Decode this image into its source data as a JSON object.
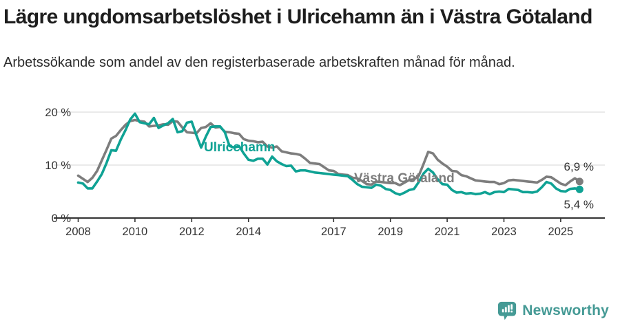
{
  "header": {
    "title": "Lägre ungdomsarbetslöshet i Ulricehamn än i Västra Götaland",
    "subtitle": "Arbetssökande som andel av den registerbaserade arbetskraften månad för månad."
  },
  "chart_data": {
    "type": "line",
    "title": "Lägre ungdomsarbetslöshet i Ulricehamn än i Västra Götaland",
    "subtitle": "Arbetssökande som andel av den registerbaserade arbetskraften månad för månad.",
    "x_start_year": 2008,
    "x_step_years": 0.166667,
    "x_tick_years": [
      2008,
      2010,
      2012,
      2014,
      2017,
      2019,
      2021,
      2023,
      2025
    ],
    "x_tick_labels": [
      "2008",
      "2010",
      "2012",
      "2014",
      "2017",
      "2019",
      "2021",
      "2023",
      "2025"
    ],
    "y_ticks": [
      {
        "value": 0,
        "label": "0 %"
      },
      {
        "value": 10,
        "label": "10 %"
      },
      {
        "value": 20,
        "label": "20 %"
      }
    ],
    "ylim": [
      0,
      21.5
    ],
    "grid": "horizontal-gridlines-at-10-and-20",
    "legend_position": "inline-labels-on-lines",
    "colors": {
      "ulricehamn": "#0fa294",
      "vastra_gotaland": "#7d7d7d",
      "grid": "#e3e3e3",
      "axis": "#333333",
      "text": "#333333"
    },
    "series": [
      {
        "name": "Västra Götaland",
        "color": "#7d7d7d",
        "end_label": "6,9 %",
        "end_value": 6.9,
        "values": [
          8.0,
          7.4,
          6.8,
          7.6,
          8.9,
          10.9,
          12.9,
          15.0,
          15.5,
          16.6,
          17.6,
          18.3,
          18.5,
          18.3,
          18.2,
          17.3,
          17.4,
          17.5,
          17.7,
          17.6,
          18.3,
          18.2,
          17.1,
          16.2,
          16.1,
          16.0,
          17.0,
          17.2,
          17.9,
          17.1,
          17.2,
          16.3,
          16.2,
          16.0,
          15.9,
          14.9,
          14.6,
          14.5,
          14.3,
          14.4,
          13.5,
          13.3,
          13.5,
          12.6,
          12.4,
          12.2,
          12.1,
          11.9,
          11.2,
          10.4,
          10.3,
          10.2,
          9.6,
          9.0,
          8.9,
          8.3,
          8.2,
          8.1,
          7.6,
          7.5,
          7.0,
          6.4,
          6.3,
          6.9,
          6.8,
          6.7,
          6.6,
          6.6,
          6.2,
          6.7,
          7.2,
          7.3,
          8.0,
          10.2,
          12.5,
          12.2,
          11.0,
          10.3,
          9.7,
          8.9,
          8.8,
          8.1,
          7.9,
          7.5,
          7.1,
          7.0,
          6.9,
          6.8,
          6.8,
          6.4,
          6.6,
          7.1,
          7.2,
          7.1,
          7.0,
          6.9,
          6.8,
          6.7,
          7.2,
          7.8,
          7.7,
          7.1,
          6.5,
          6.2,
          6.9,
          7.5,
          6.9
        ]
      },
      {
        "name": "Ulricehamn",
        "color": "#0fa294",
        "end_label": "5,4 %",
        "end_value": 5.4,
        "values": [
          6.7,
          6.5,
          5.6,
          5.6,
          6.9,
          8.3,
          10.4,
          12.8,
          12.7,
          14.8,
          16.6,
          18.6,
          19.7,
          18.1,
          17.9,
          17.7,
          18.9,
          17.0,
          17.5,
          17.9,
          18.7,
          16.2,
          16.4,
          18.0,
          18.2,
          15.6,
          13.3,
          15.4,
          17.2,
          17.3,
          17.3,
          16.2,
          13.6,
          13.3,
          13.6,
          12.2,
          11.0,
          10.8,
          11.2,
          11.2,
          10.1,
          11.6,
          10.7,
          10.2,
          9.8,
          9.9,
          8.8,
          9.0,
          9.0,
          8.8,
          8.6,
          8.5,
          8.4,
          8.3,
          8.2,
          8.1,
          8.0,
          7.9,
          7.2,
          6.4,
          5.9,
          5.8,
          5.7,
          6.3,
          6.1,
          5.5,
          5.3,
          4.7,
          4.4,
          4.8,
          5.3,
          5.5,
          6.8,
          8.4,
          9.3,
          8.6,
          7.3,
          6.4,
          6.3,
          5.3,
          4.8,
          4.9,
          4.6,
          4.7,
          4.5,
          4.6,
          4.9,
          4.5,
          4.9,
          5.0,
          4.9,
          5.5,
          5.4,
          5.3,
          4.9,
          4.9,
          4.8,
          5.0,
          5.8,
          6.8,
          6.5,
          5.6,
          5.1,
          5.0,
          5.5,
          5.6,
          5.4
        ]
      }
    ]
  },
  "footer": {
    "brand": "Newsworthy",
    "brand_color": "#459a95",
    "logo_icon": "bar-chart-speech-bubble-icon"
  }
}
